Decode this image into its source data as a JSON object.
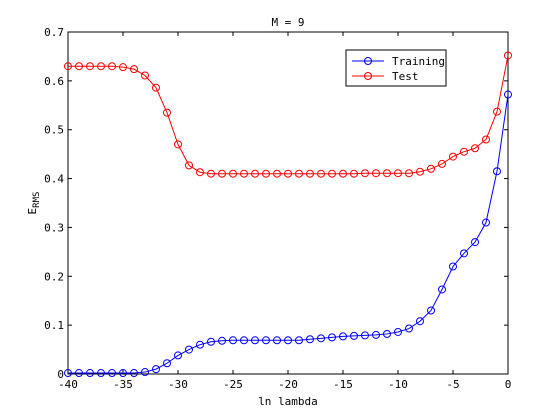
{
  "chart_data": {
    "type": "line",
    "title": "M = 9",
    "xlabel": "ln lambda",
    "ylabel_main": "E",
    "ylabel_sub": "RMS",
    "xlim": [
      -40,
      0
    ],
    "ylim": [
      0,
      0.7
    ],
    "xticks": [
      -40,
      -35,
      -30,
      -25,
      -20,
      -15,
      -10,
      -5,
      0
    ],
    "xtick_labels": [
      "-40",
      "-35",
      "-30",
      "-25",
      "-20",
      "-15",
      "-10",
      "-5",
      "0"
    ],
    "yticks": [
      0,
      0.1,
      0.2,
      0.3,
      0.4,
      0.5,
      0.6,
      0.7
    ],
    "ytick_labels": [
      "0",
      "0.1",
      "0.2",
      "0.3",
      "0.4",
      "0.5",
      "0.6",
      "0.7"
    ],
    "grid": false,
    "legend_position": "top-right",
    "marker": "circle",
    "x": [
      -40,
      -39,
      -38,
      -37,
      -36,
      -35,
      -34,
      -33,
      -32,
      -31,
      -30,
      -29,
      -28,
      -27,
      -26,
      -25,
      -24,
      -23,
      -22,
      -21,
      -20,
      -19,
      -18,
      -17,
      -16,
      -15,
      -14,
      -13,
      -12,
      -11,
      -10,
      -9,
      -8,
      -7,
      -6,
      -5,
      -4,
      -3,
      -2,
      -1,
      0
    ],
    "series": [
      {
        "name": "Training",
        "color": "#0000ff",
        "values": [
          0.002,
          0.002,
          0.002,
          0.002,
          0.002,
          0.002,
          0.002,
          0.004,
          0.01,
          0.022,
          0.038,
          0.05,
          0.06,
          0.066,
          0.068,
          0.069,
          0.069,
          0.069,
          0.069,
          0.069,
          0.069,
          0.069,
          0.071,
          0.073,
          0.075,
          0.077,
          0.078,
          0.079,
          0.08,
          0.082,
          0.086,
          0.093,
          0.108,
          0.13,
          0.173,
          0.22,
          0.247,
          0.27,
          0.31,
          0.415,
          0.572
        ]
      },
      {
        "name": "Test",
        "color": "#ff0000",
        "values": [
          0.63,
          0.63,
          0.63,
          0.63,
          0.63,
          0.628,
          0.624,
          0.611,
          0.586,
          0.535,
          0.47,
          0.427,
          0.413,
          0.41,
          0.41,
          0.41,
          0.41,
          0.41,
          0.41,
          0.41,
          0.41,
          0.41,
          0.41,
          0.41,
          0.41,
          0.41,
          0.41,
          0.411,
          0.411,
          0.411,
          0.411,
          0.411,
          0.414,
          0.42,
          0.43,
          0.445,
          0.455,
          0.462,
          0.48,
          0.537,
          0.652
        ]
      }
    ]
  }
}
